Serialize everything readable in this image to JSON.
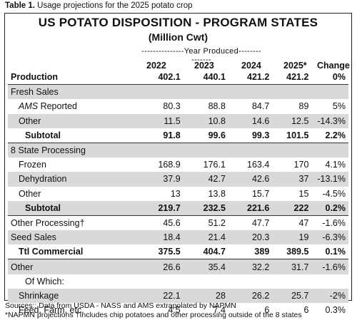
{
  "caption": {
    "prefix": "Table 1.",
    "text": " Usage projections for the 2025 potato crop"
  },
  "title": "US POTATO DISPOSITION - PROGRAM STATES",
  "subtitle": "(Million Cwt)",
  "year_produced": "---------------Year Produced---------------",
  "columns": [
    "2022",
    "2023",
    "2024",
    "2025*",
    "Change"
  ],
  "rows": [
    {
      "label": "Production",
      "values": [
        "402.1",
        "440.1",
        "421.2",
        "421.2",
        "0%"
      ]
    },
    {
      "label": "Fresh Sales",
      "values": [
        "",
        "",
        "",
        "",
        ""
      ]
    },
    {
      "label_italic": "AMS",
      "label": " Reported",
      "values": [
        "80.3",
        "88.8",
        "84.7",
        "89",
        "5%"
      ]
    },
    {
      "label": "Other",
      "values": [
        "11.5",
        "10.8",
        "14.6",
        "12.5",
        "-14.3%"
      ]
    },
    {
      "label": "Subtotal",
      "values": [
        "91.8",
        "99.6",
        "99.3",
        "101.5",
        "2.2%"
      ]
    },
    {
      "label": "8 State Processing",
      "values": [
        "",
        "",
        "",
        "",
        ""
      ]
    },
    {
      "label": "Frozen",
      "values": [
        "168.9",
        "176.1",
        "163.4",
        "170",
        "4.1%"
      ]
    },
    {
      "label": "Dehydration",
      "values": [
        "37.9",
        "42.7",
        "42.6",
        "37",
        "-13.1%"
      ]
    },
    {
      "label": "Other",
      "values": [
        "13",
        "13.8",
        "15.7",
        "15",
        "-4.5%"
      ]
    },
    {
      "label": "Subtotal",
      "values": [
        "219.7",
        "232.5",
        "221.6",
        "222",
        "0.2%"
      ]
    },
    {
      "label": "Other Processing†",
      "values": [
        "45.6",
        "51.2",
        "47.7",
        "47",
        "-1.6%"
      ]
    },
    {
      "label": "Seed Sales",
      "values": [
        "18.4",
        "21.4",
        "20.3",
        "19",
        "-6.3%"
      ]
    },
    {
      "label": "Ttl Commercial",
      "values": [
        "375.5",
        "404.7",
        "389",
        "389.5",
        "0.1%"
      ]
    },
    {
      "label": "Other",
      "values": [
        "26.6",
        "35.4",
        "32.2",
        "31.7",
        "-1.6%"
      ]
    },
    {
      "label": "Of Which:",
      "values": [
        "",
        "",
        "",
        "",
        ""
      ]
    },
    {
      "label": "Shrinkage",
      "values": [
        "22.1",
        "28",
        "26.2",
        "25.7",
        "-2%"
      ]
    },
    {
      "label": "Feed, Farm, etc.",
      "values": [
        "4.5",
        "7.4",
        "6",
        "6",
        "0.3%"
      ]
    }
  ],
  "notes": [
    "Sources:: Data from USDA - NASS and AMS extrapolated by NAPMN",
    "*NAPMN projections †Includes chip potatoes and other processing outside of the 8 states"
  ]
}
